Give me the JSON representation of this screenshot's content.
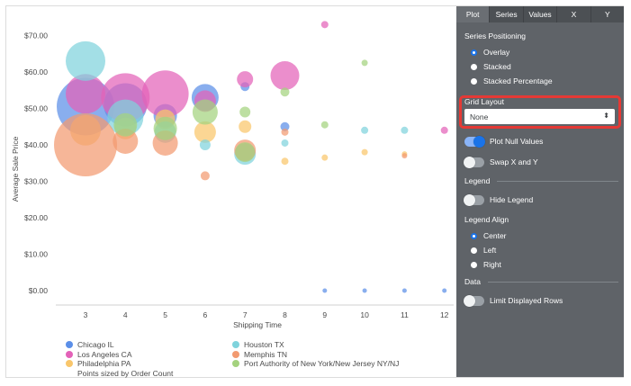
{
  "chart_data": {
    "type": "scatter",
    "bubble": true,
    "xlabel": "Shipping Time",
    "ylabel": "Average Sale Price",
    "categories": [
      "3",
      "4",
      "5",
      "6",
      "7",
      "8",
      "9",
      "10",
      "11",
      "12"
    ],
    "x": [
      3,
      4,
      5,
      6,
      7,
      8,
      9,
      10,
      11,
      12
    ],
    "ylim": [
      -5,
      75
    ],
    "yticks": [
      0,
      10,
      20,
      30,
      40,
      50,
      60,
      70
    ],
    "ytick_labels": [
      "$0.00",
      "$10.00",
      "$20.00",
      "$30.00",
      "$40.00",
      "$50.00",
      "$60.00",
      "$70.00"
    ],
    "grid": false,
    "legend_position": "bottom",
    "size_note": "Points sized by Order Count",
    "series": [
      {
        "name": "Chicago IL",
        "color": "#5b8fe8",
        "points": [
          [
            3,
            50.5,
            32
          ],
          [
            4,
            51,
            24
          ],
          [
            5,
            48,
            13
          ],
          [
            6,
            53,
            15
          ],
          [
            7,
            56,
            5
          ],
          [
            8,
            45,
            5
          ],
          [
            9,
            0,
            2.5
          ],
          [
            10,
            0,
            2.5
          ],
          [
            11,
            0,
            2.5
          ],
          [
            12,
            0,
            2.5
          ]
        ]
      },
      {
        "name": "Los Angeles CA",
        "color": "#e362b8",
        "points": [
          [
            3,
            54,
            22
          ],
          [
            4,
            53,
            27
          ],
          [
            5,
            54,
            26
          ],
          [
            6,
            52,
            12
          ],
          [
            7,
            58,
            9
          ],
          [
            8,
            59,
            16
          ],
          [
            9,
            73,
            4
          ],
          [
            12,
            44,
            4
          ]
        ]
      },
      {
        "name": "Philadelphia PA",
        "color": "#f9c66b",
        "points": [
          [
            3,
            44,
            17
          ],
          [
            4,
            44.5,
            12
          ],
          [
            5,
            47,
            11
          ],
          [
            6,
            43.5,
            12
          ],
          [
            7,
            45,
            7
          ],
          [
            8,
            35.5,
            4
          ],
          [
            9,
            36.5,
            3.5
          ],
          [
            10,
            38,
            3.5
          ],
          [
            11,
            37.5,
            3
          ]
        ]
      },
      {
        "name": "Houston TX",
        "color": "#7fd3dc",
        "points": [
          [
            3,
            63,
            22
          ],
          [
            4,
            47.5,
            20
          ],
          [
            5,
            43.5,
            12
          ],
          [
            6,
            40,
            6
          ],
          [
            7,
            37.5,
            12
          ],
          [
            8,
            40.5,
            4
          ],
          [
            10,
            44,
            4
          ],
          [
            11,
            44,
            4
          ]
        ]
      },
      {
        "name": "Memphis TN",
        "color": "#f29a70",
        "points": [
          [
            3,
            40,
            35
          ],
          [
            4,
            41,
            14
          ],
          [
            5,
            40.5,
            14
          ],
          [
            6,
            31.5,
            5
          ],
          [
            7,
            38.5,
            12
          ],
          [
            8,
            43.5,
            4
          ],
          [
            11,
            37,
            3
          ]
        ]
      },
      {
        "name": "Port Authority of New York/New Jersey NY/NJ",
        "color": "#a4d27e",
        "points": [
          [
            4,
            45.5,
            13
          ],
          [
            5,
            44.5,
            13
          ],
          [
            6,
            49,
            14
          ],
          [
            7,
            38,
            11
          ],
          [
            7,
            49,
            6
          ],
          [
            8,
            54.5,
            5
          ],
          [
            9,
            45.5,
            4
          ],
          [
            10,
            62.5,
            3.5
          ]
        ]
      }
    ]
  },
  "legend": {
    "left": [
      {
        "label": "Chicago IL",
        "color": "#5b8fe8"
      },
      {
        "label": "Los Angeles CA",
        "color": "#e362b8"
      },
      {
        "label": "Philadelphia PA",
        "color": "#f9c66b"
      }
    ],
    "right": [
      {
        "label": "Houston TX",
        "color": "#7fd3dc"
      },
      {
        "label": "Memphis TN",
        "color": "#f29a70"
      },
      {
        "label": "Port Authority of New York/New Jersey NY/NJ",
        "color": "#a4d27e"
      }
    ],
    "note": "Points sized by Order Count"
  },
  "panel": {
    "tabs": [
      "Plot",
      "Series",
      "Values",
      "X",
      "Y"
    ],
    "active_tab": "Plot",
    "series_positioning": {
      "label": "Series Positioning",
      "options": [
        "Overlay",
        "Stacked",
        "Stacked Percentage"
      ],
      "selected": "Overlay"
    },
    "grid_layout": {
      "label": "Grid Layout",
      "value": "None",
      "arrow": "⬍"
    },
    "plot_null_values": {
      "label": "Plot Null Values",
      "on": true
    },
    "swap_xy": {
      "label": "Swap X and Y",
      "on": false
    },
    "legend_section": "Legend",
    "hide_legend": {
      "label": "Hide Legend",
      "on": false
    },
    "legend_align": {
      "label": "Legend Align",
      "options": [
        "Center",
        "Left",
        "Right"
      ],
      "selected": "Center"
    },
    "data_section": "Data",
    "limit_rows": {
      "label": "Limit Displayed Rows",
      "on": false
    },
    "colors": {
      "panel_bg": "#5f6368",
      "accent": "#1a73e8",
      "highlight": "#e53935"
    }
  }
}
